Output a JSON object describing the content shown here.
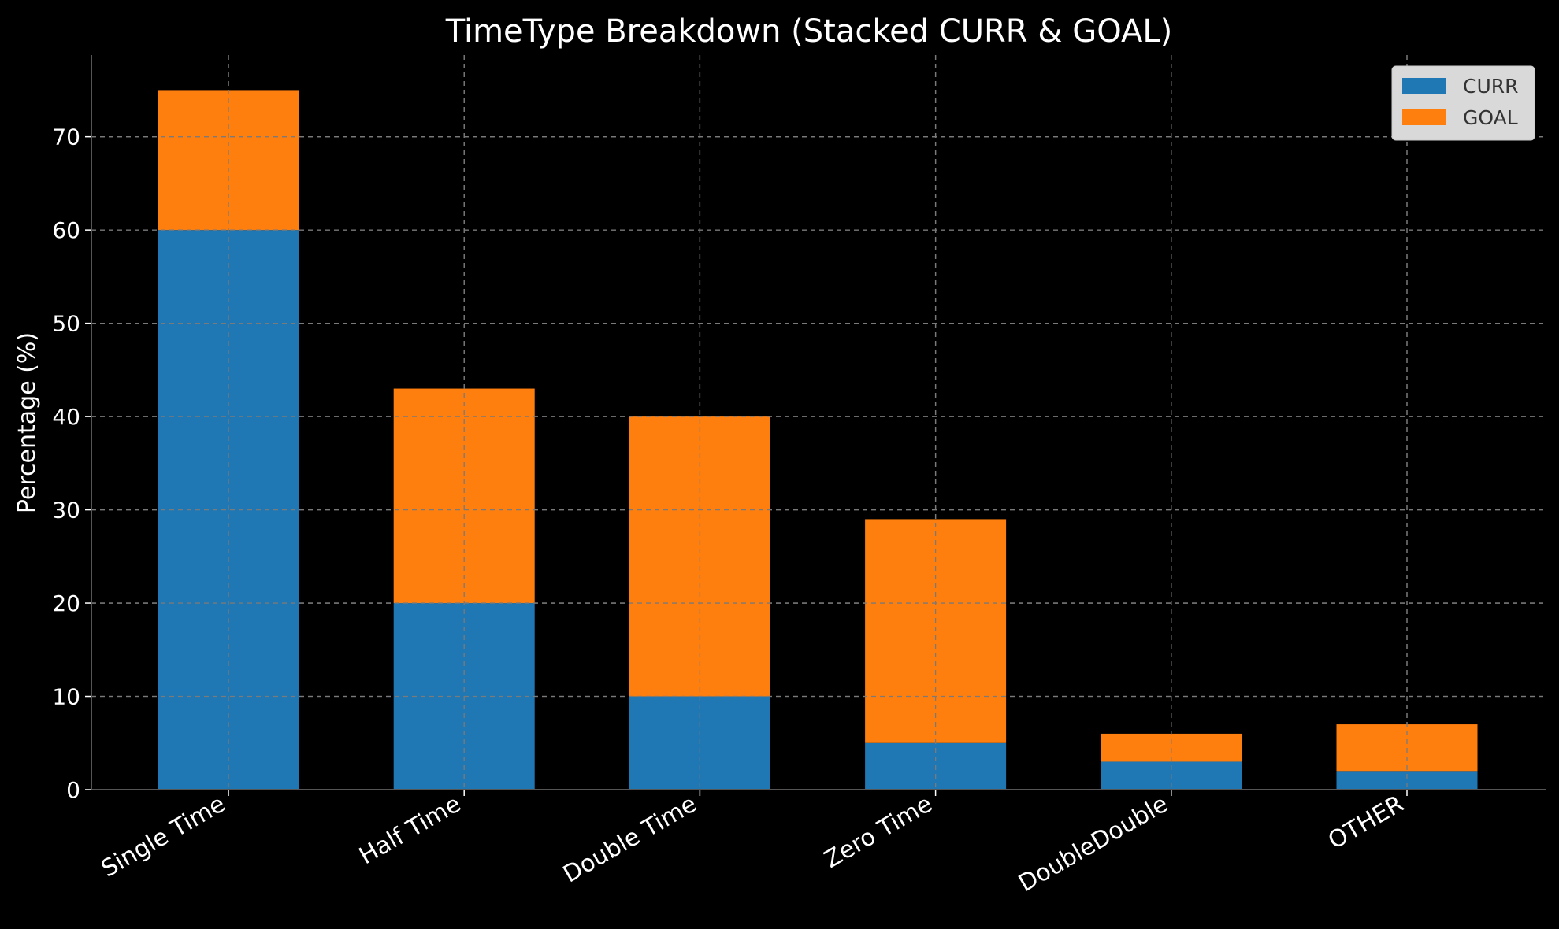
{
  "chart_data": {
    "type": "bar",
    "stacked": true,
    "title": "TimeType Breakdown (Stacked CURR & GOAL)",
    "xlabel": "",
    "ylabel": "Percentage (%)",
    "categories": [
      "Single Time",
      "Half Time",
      "Double Time",
      "Zero Time",
      "DoubleDouble",
      "OTHER"
    ],
    "series": [
      {
        "name": "CURR",
        "color": "#1f77b4",
        "values": [
          60,
          20,
          10,
          5,
          3,
          2
        ]
      },
      {
        "name": "GOAL",
        "color": "#ff7f0e",
        "values": [
          15,
          23,
          30,
          24,
          3,
          5
        ]
      }
    ],
    "ylim": [
      0,
      78.75
    ],
    "yticks": [
      0,
      10,
      20,
      30,
      40,
      50,
      60,
      70
    ],
    "grid": true,
    "legend": "top-right"
  }
}
